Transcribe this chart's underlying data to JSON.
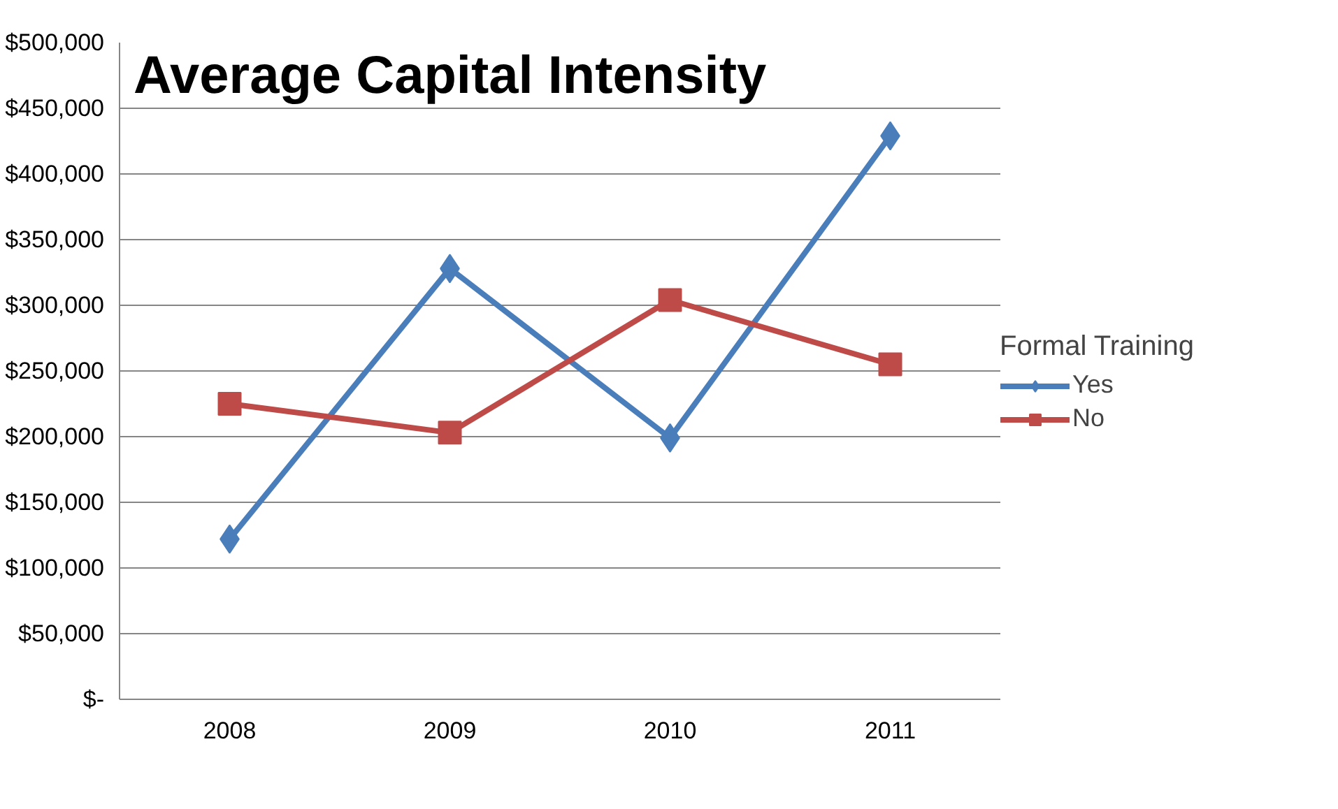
{
  "chart_data": {
    "type": "line",
    "title": "Average Capital Intensity",
    "legend_title": "Formal Training",
    "categories": [
      "2008",
      "2009",
      "2010",
      "2011"
    ],
    "series": [
      {
        "name": "Yes",
        "color": "#4a7ebb",
        "marker": "diamond",
        "values": [
          122000,
          328000,
          199000,
          429000
        ]
      },
      {
        "name": "No",
        "color": "#be4b48",
        "marker": "square",
        "values": [
          225000,
          203000,
          304000,
          255000
        ]
      }
    ],
    "ylim": [
      0,
      500000
    ],
    "yticks": [
      {
        "value": 0,
        "label": "$-"
      },
      {
        "value": 50000,
        "label": "$50,000"
      },
      {
        "value": 100000,
        "label": "$100,000"
      },
      {
        "value": 150000,
        "label": "$150,000"
      },
      {
        "value": 200000,
        "label": "$200,000"
      },
      {
        "value": 250000,
        "label": "$250,000"
      },
      {
        "value": 300000,
        "label": "$300,000"
      },
      {
        "value": 350000,
        "label": "$350,000"
      },
      {
        "value": 400000,
        "label": "$400,000"
      },
      {
        "value": 450000,
        "label": "$450,000"
      },
      {
        "value": 500000,
        "label": "$500,000"
      }
    ],
    "grid": "y",
    "legend": "right",
    "line_style": "solid"
  }
}
